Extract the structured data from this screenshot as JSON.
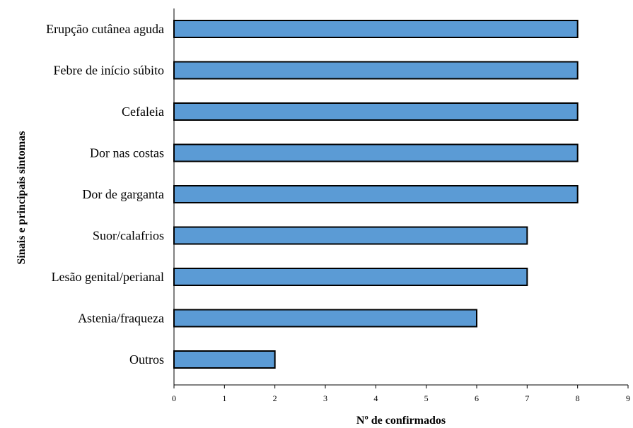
{
  "chart_data": {
    "type": "bar",
    "orientation": "horizontal",
    "categories": [
      "Erupção cutânea aguda",
      "Febre de início súbito",
      "Cefaleia",
      "Dor nas costas",
      "Dor de garganta",
      "Suor/calafrios",
      "Lesão genital/perianal",
      "Astenia/fraqueza",
      "Outros"
    ],
    "values": [
      8,
      8,
      8,
      8,
      8,
      7,
      7,
      6,
      2
    ],
    "xlabel": "Nº de confirmados",
    "ylabel": "Sinais e principais sintomas",
    "xlim": [
      0,
      9
    ],
    "xticks": [
      "0",
      "1",
      "2",
      "3",
      "4",
      "5",
      "6",
      "7",
      "8",
      "9"
    ],
    "grid": false,
    "legend": "none",
    "bar_color": "#5B9BD5",
    "bar_edge_color": "#000000"
  }
}
